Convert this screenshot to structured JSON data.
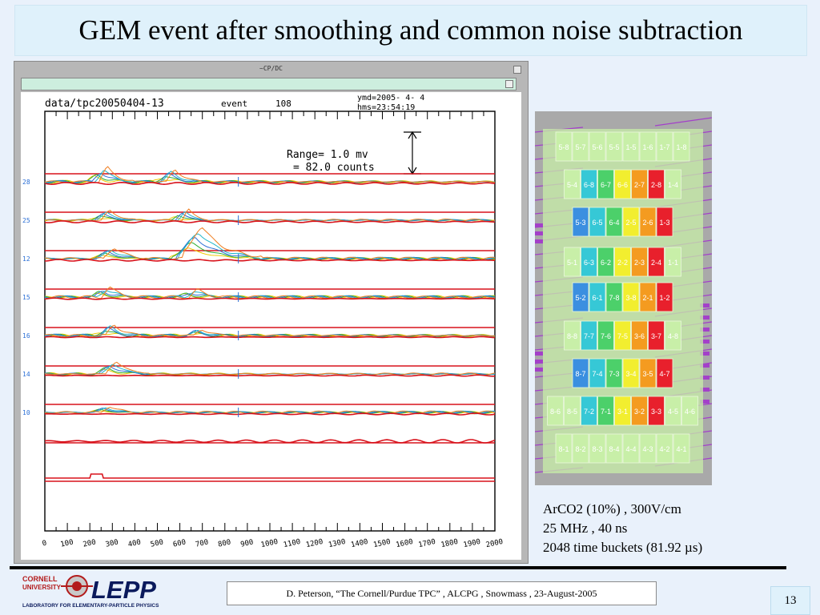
{
  "slide": {
    "title": "GEM event after smoothing and common noise subtraction",
    "page_number": "13",
    "footer": "D. Peterson,  “The Cornell/Purdue TPC” ,  ALCPG , Snowmass , 23-August-2005"
  },
  "plot_window": {
    "window_title": "~CP/DC",
    "header": {
      "run": "data/tpc20050404-13",
      "event_label": "event",
      "event_number": "108",
      "ymd": "ymd=2005- 4- 4",
      "hms": "hms=23:54:19"
    },
    "range": {
      "line1": "Range=    1.0  mv",
      "line2": "=   82.0  counts"
    },
    "channel_labels": [
      "28",
      "25",
      "12",
      "15",
      "16",
      "14",
      "10"
    ],
    "x_ticks": [
      "0",
      "100",
      "200",
      "300",
      "400",
      "500",
      "600",
      "700",
      "800",
      "900",
      "1000",
      "1100",
      "1200",
      "1300",
      "1400",
      "1500",
      "1600",
      "1700",
      "1800",
      "1900",
      "2000"
    ],
    "trace_colors": {
      "baseline": "#d8121b",
      "yellow": "#f0c800",
      "green": "#2cae35",
      "blue": "#2b6fd6",
      "cyan": "#1fb5c9",
      "orange": "#ef7d1f"
    }
  },
  "pad_map": {
    "rows": [
      [
        "5-8",
        "5-7",
        "5-6",
        "5-5",
        "1-5",
        "1-6",
        "1-7",
        "1-8"
      ],
      [
        "5-4",
        "6-8",
        "6-7",
        "6-6",
        "2-7",
        "2-8",
        "1-4"
      ],
      [
        "5-3",
        "6-5",
        "6-4",
        "2-5",
        "2-6",
        "1-3"
      ],
      [
        "5-1",
        "6-3",
        "6-2",
        "2-2",
        "2-3",
        "2-4",
        "1-1"
      ],
      [
        "5-2",
        "6-1",
        "7-8",
        "3-8",
        "2-1",
        "1-2"
      ],
      [
        "8-8",
        "7-7",
        "7-6",
        "7-5",
        "3-6",
        "3-7",
        "4-8"
      ],
      [
        "8-7",
        "7-4",
        "7-3",
        "3-4",
        "3-5",
        "4-7"
      ],
      [
        "8-6",
        "8-5",
        "7-2",
        "7-1",
        "3-1",
        "3-2",
        "3-3",
        "4-5",
        "4-6"
      ],
      [
        "8-1",
        "8-2",
        "8-3",
        "8-4",
        "4-4",
        "4-3",
        "4-2",
        "4-1"
      ]
    ],
    "colors": {
      "blue": "#3b8fe0",
      "cyan": "#36c8d6",
      "green": "#4cd06a",
      "yellow": "#f2ee2f",
      "orange": "#f49b20",
      "red": "#e8202c",
      "pale_green": "#c8efa8",
      "trace_purple": "#a340c9"
    }
  },
  "notes": {
    "line1": "ArCO2 (10%) , 300V/cm",
    "line2": "25 MHz , 40 ns",
    "line3": "2048 time buckets  (81.92 µs)"
  },
  "logo": {
    "cornell": "CORNELL",
    "university": "UNIVERSITY",
    "lepp": "LEPP",
    "subtitle": "LABORATORY FOR ELEMENTARY-PARTICLE PHYSICS"
  }
}
